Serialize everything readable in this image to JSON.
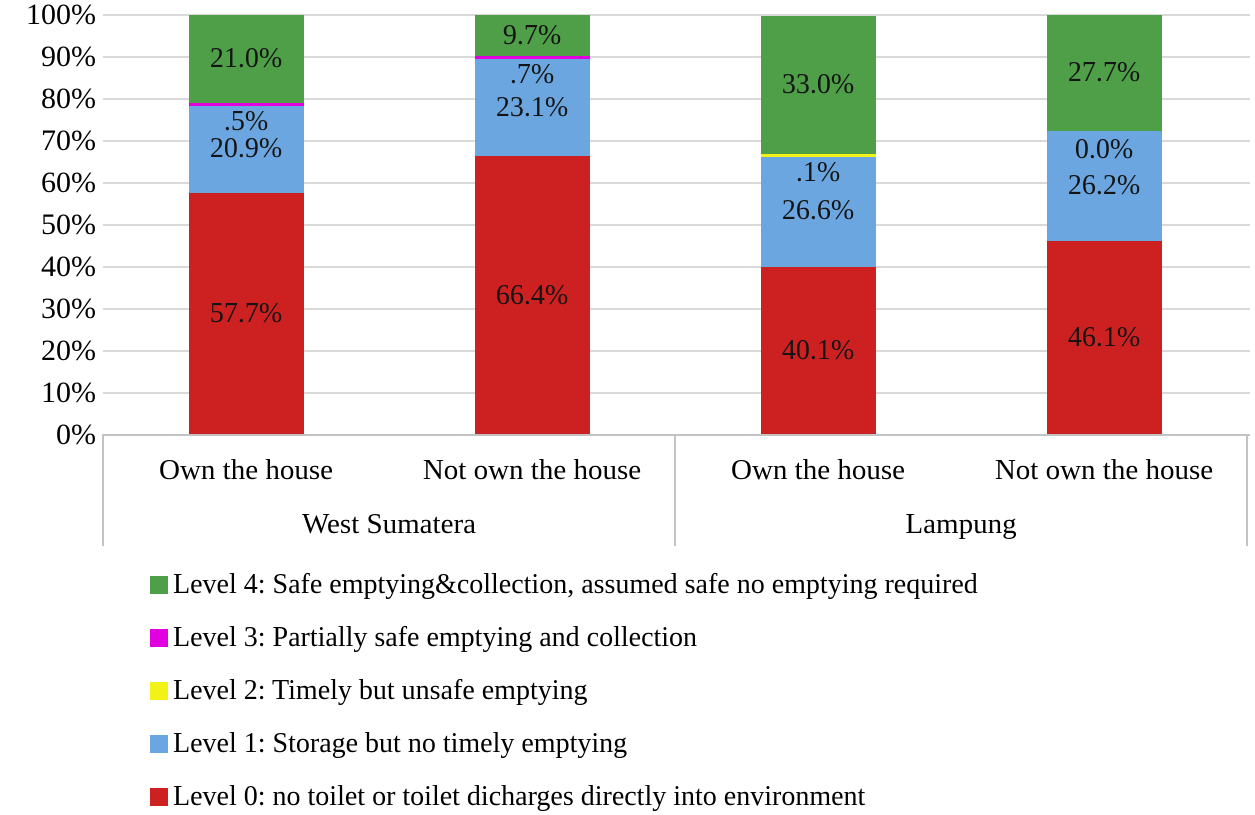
{
  "chart_data": {
    "type": "bar",
    "stacked": true,
    "title": "",
    "xlabel": "",
    "ylabel": "",
    "ylim": [
      0,
      100
    ],
    "grid": true,
    "y_tick_labels": [
      "100%",
      "90%",
      "80%",
      "70%",
      "60%",
      "50%",
      "40%",
      "30%",
      "20%",
      "10%",
      "0%"
    ],
    "legend_position": "bottom-left",
    "groups": [
      {
        "label": "West Sumatera",
        "categories": [
          "Own the house",
          "Not own the house"
        ]
      },
      {
        "label": "Lampung",
        "categories": [
          "Own the house",
          "Not own the house"
        ]
      }
    ],
    "series": [
      {
        "name": "Level 0: no toilet or toilet dicharges directly into environment",
        "color": "#cd2121",
        "values": [
          57.7,
          66.4,
          40.1,
          46.1
        ],
        "labels": [
          "57.7%",
          "66.4%",
          "40.1%",
          "46.1%"
        ]
      },
      {
        "name": "Level 1: Storage but no timely emptying",
        "color": "#6ca6e0",
        "values": [
          20.9,
          23.1,
          26.6,
          26.2
        ],
        "labels": [
          "20.9%",
          "23.1%",
          "26.6%",
          "26.2%"
        ]
      },
      {
        "name": "Level 2: Timely but unsafe emptying",
        "color": "#f2f218",
        "values": [
          0.0,
          0.0,
          0.1,
          0.0
        ],
        "labels": [
          null,
          null,
          ".1%",
          "0.0%"
        ]
      },
      {
        "name": "Level 3: Partially safe emptying and collection",
        "color": "#e000e0",
        "values": [
          0.5,
          0.7,
          0.0,
          0.0
        ],
        "labels": [
          ".5%",
          ".7%",
          null,
          null
        ]
      },
      {
        "name": "Level 4: Safe emptying&collection, assumed safe no emptying required",
        "color": "#4f9e48",
        "values": [
          21.0,
          9.7,
          33.0,
          27.7
        ],
        "labels": [
          "21.0%",
          "9.7%",
          "33.0%",
          "27.7%"
        ]
      }
    ]
  },
  "legend": {
    "items": [
      {
        "label": "Level 4: Safe emptying&collection, assumed safe no emptying required",
        "color": "#4f9e48"
      },
      {
        "label": "Level 3: Partially safe emptying and collection",
        "color": "#e000e0"
      },
      {
        "label": "Level 2: Timely but unsafe emptying",
        "color": "#f2f218"
      },
      {
        "label": "Level 1: Storage but no timely emptying",
        "color": "#6ca6e0"
      },
      {
        "label": "Level 0: no toilet or toilet dicharges directly into environment",
        "color": "#cd2121"
      }
    ]
  },
  "colors": {
    "gridline": "#d9d9d9",
    "axis": "#c3c3c3",
    "label_text": "#141414"
  }
}
